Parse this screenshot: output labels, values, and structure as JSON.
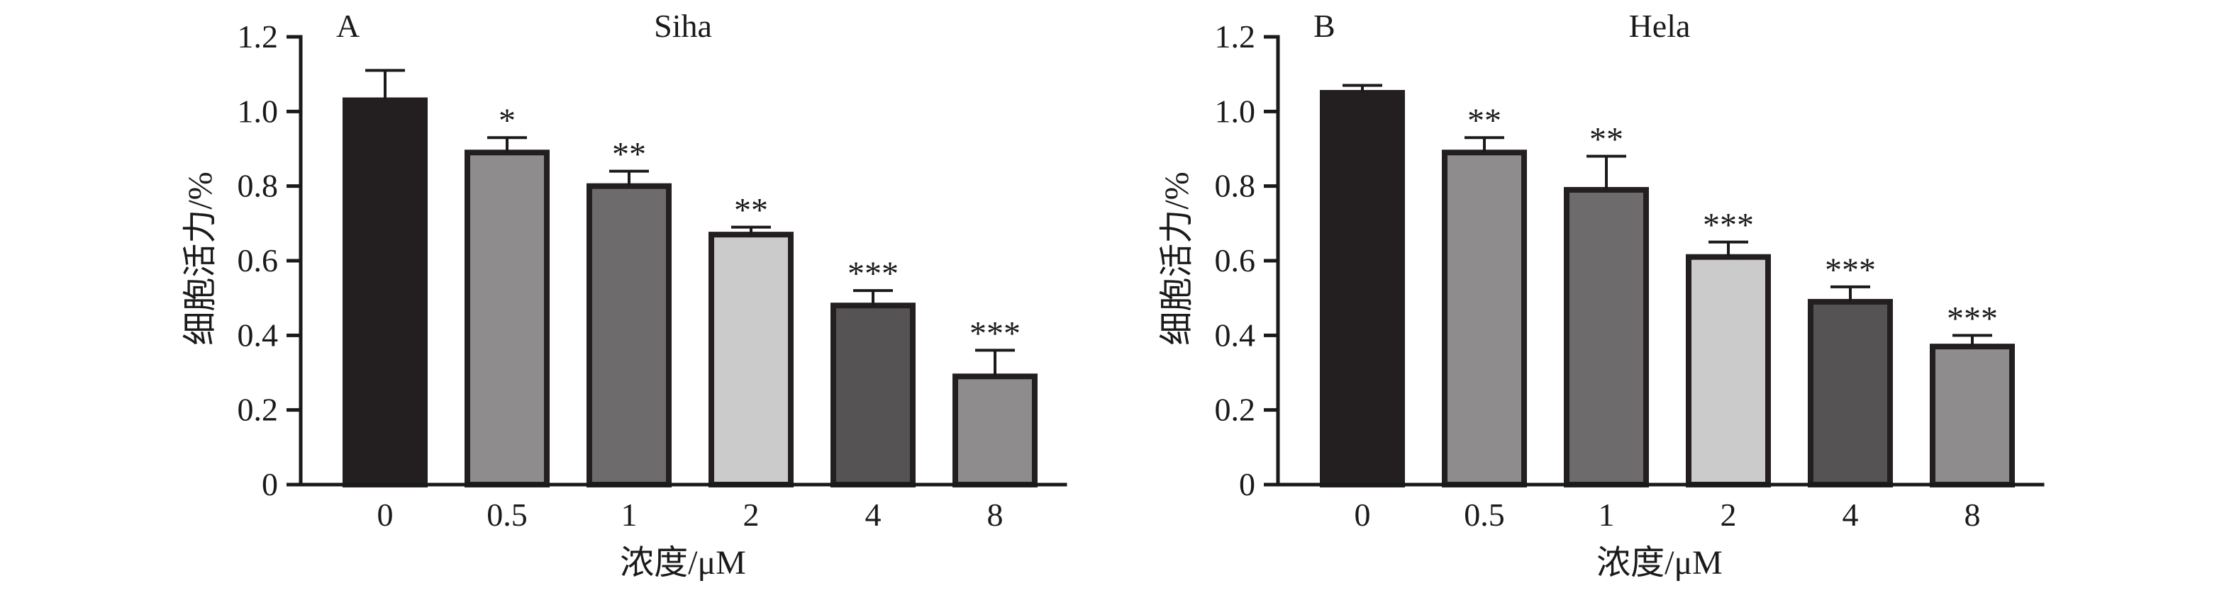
{
  "chart_data": [
    {
      "type": "bar",
      "panel_letter": "A",
      "title": "Siha",
      "xlabel": "浓度/μM",
      "ylabel": "细胞活力/%",
      "categories": [
        "0",
        "0.5",
        "1",
        "2",
        "4",
        "8"
      ],
      "values": [
        1.03,
        0.89,
        0.8,
        0.67,
        0.48,
        0.29
      ],
      "errors": [
        0.08,
        0.04,
        0.04,
        0.02,
        0.04,
        0.07
      ],
      "significance": [
        "",
        "*",
        "**",
        "**",
        "***",
        "***"
      ],
      "bar_colors": [
        "#231f20",
        "#8e8c8d",
        "#6d6b6c",
        "#cbcbcb",
        "#555354",
        "#8e8c8d"
      ],
      "ylim": [
        0,
        1.2
      ],
      "yticks": [
        "0",
        "0.2",
        "0.4",
        "0.6",
        "0.8",
        "1.0",
        "1.2"
      ],
      "grid": false
    },
    {
      "type": "bar",
      "panel_letter": "B",
      "title": "Hela",
      "xlabel": "浓度/μM",
      "ylabel": "细胞活力/%",
      "categories": [
        "0",
        "0.5",
        "1",
        "2",
        "4",
        "8"
      ],
      "values": [
        1.05,
        0.89,
        0.79,
        0.61,
        0.49,
        0.37
      ],
      "errors": [
        0.02,
        0.04,
        0.09,
        0.04,
        0.04,
        0.03
      ],
      "significance": [
        "",
        "**",
        "**",
        "***",
        "***",
        "***"
      ],
      "bar_colors": [
        "#231f20",
        "#8e8c8d",
        "#6d6b6c",
        "#cbcbcb",
        "#555354",
        "#8e8c8d"
      ],
      "ylim": [
        0,
        1.2
      ],
      "yticks": [
        "0",
        "0.2",
        "0.4",
        "0.6",
        "0.8",
        "1.0",
        "1.2"
      ],
      "grid": false
    }
  ]
}
